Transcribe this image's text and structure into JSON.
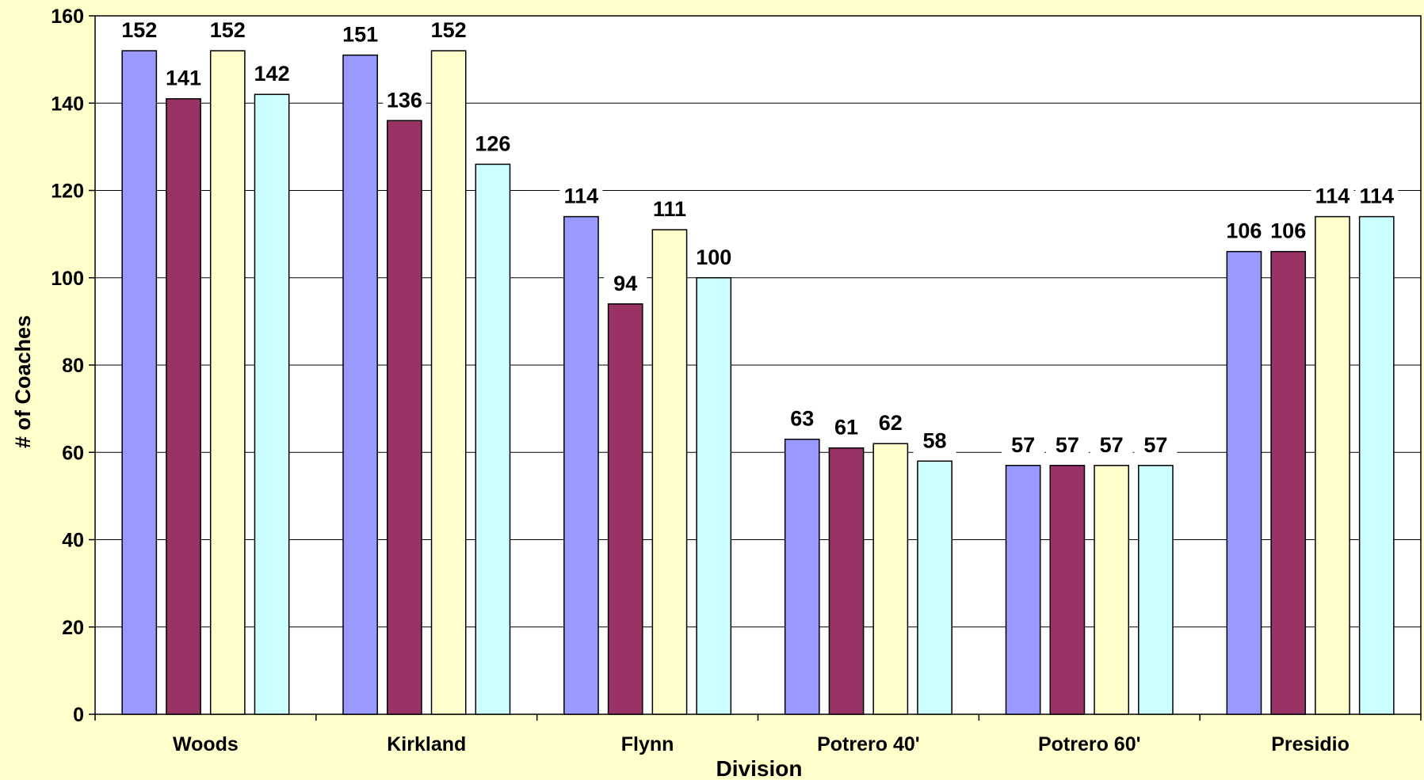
{
  "chart_data": {
    "type": "bar",
    "title": "",
    "xlabel": "Division",
    "ylabel": "# of Coaches",
    "categories": [
      "Woods",
      "Kirkland",
      "Flynn",
      "Potrero 40'",
      "Potrero 60'",
      "Presidio"
    ],
    "series": [
      {
        "values": [
          152,
          151,
          114,
          63,
          57,
          106
        ],
        "color": "#9999FF"
      },
      {
        "values": [
          141,
          136,
          94,
          61,
          57,
          106
        ],
        "color": "#993366"
      },
      {
        "values": [
          152,
          152,
          111,
          62,
          57,
          114
        ],
        "color": "#FFFFCC"
      },
      {
        "values": [
          142,
          126,
          100,
          58,
          57,
          114
        ],
        "color": "#CCFFFF"
      }
    ],
    "ylim": [
      0,
      160
    ],
    "yticks": [
      0,
      20,
      40,
      60,
      80,
      100,
      120,
      140,
      160
    ],
    "grid": true,
    "legend": "none",
    "colors": {
      "background": "#FFFFCC",
      "plot_area": "#FFFFFF"
    }
  }
}
